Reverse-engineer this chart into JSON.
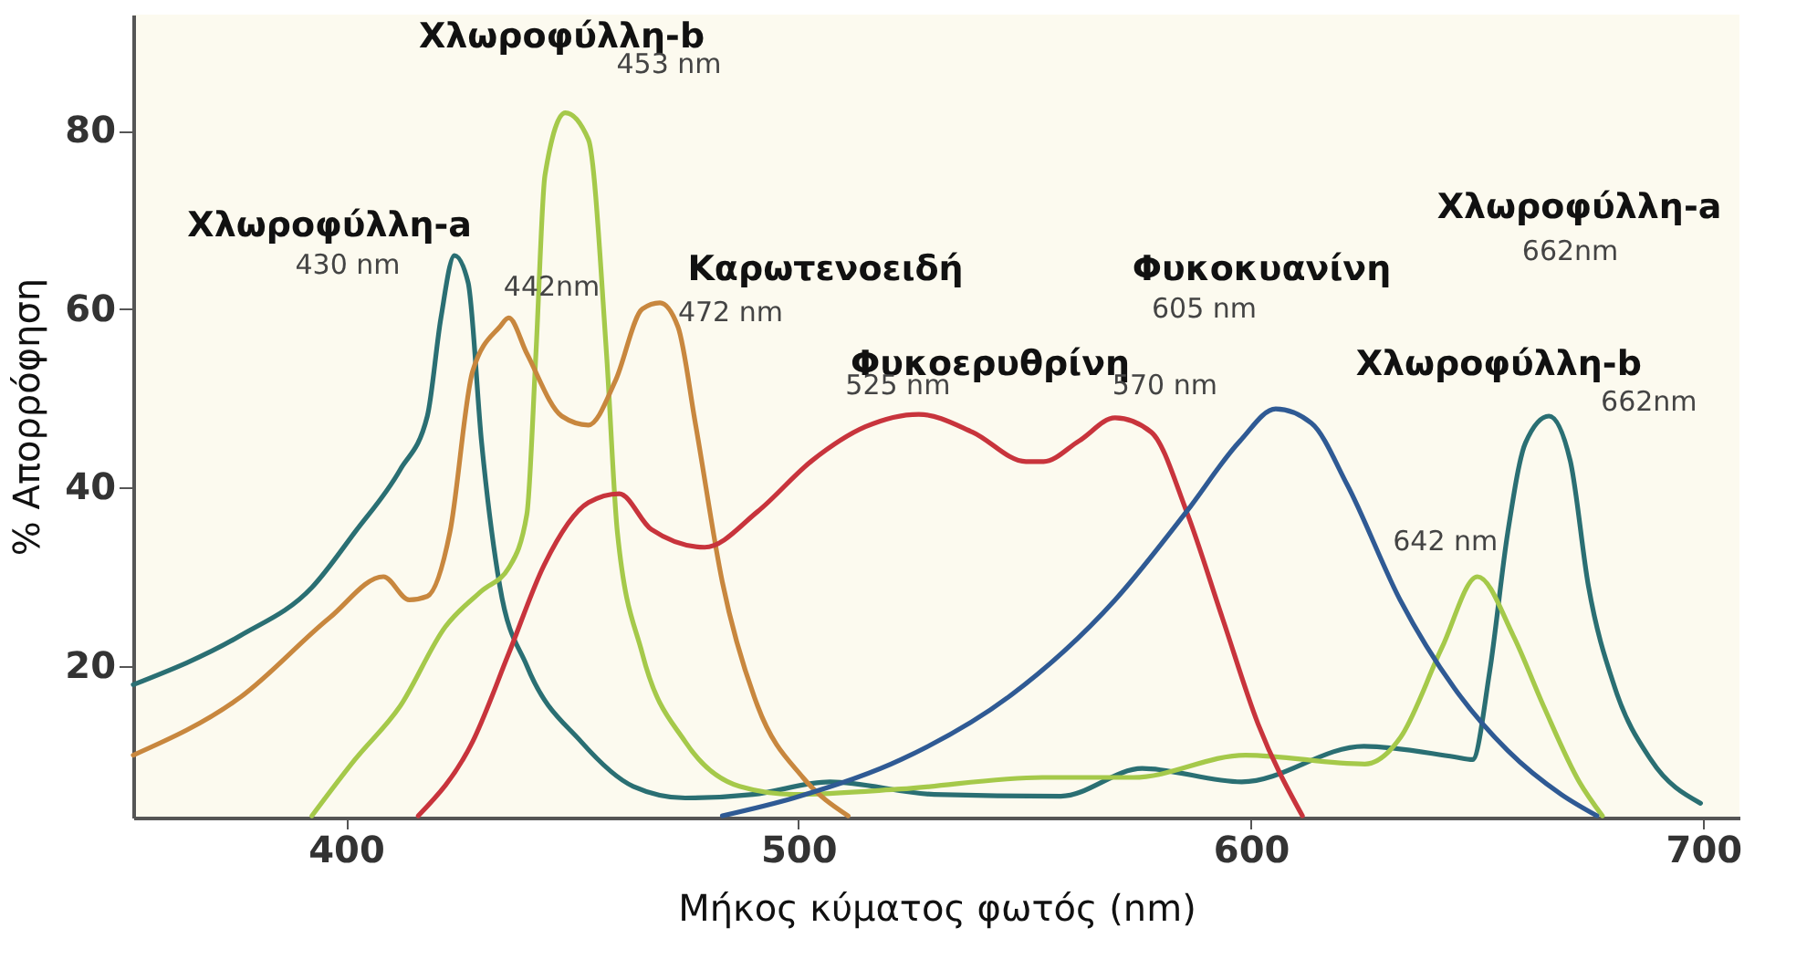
{
  "chart_data": {
    "type": "line",
    "xlabel": "Μήκος κύματος φωτός (nm)",
    "ylabel": "% Απορρόφηση",
    "xlim": [
      353,
      708
    ],
    "ylim": [
      3,
      93
    ],
    "xticks": [
      400,
      500,
      600,
      700
    ],
    "yticks": [
      20,
      40,
      60,
      80
    ],
    "grid": false,
    "legend": false,
    "marker": "none",
    "line_style": "solid",
    "series": [
      {
        "color": "#2a6f73",
        "x": [
          353,
          376.7,
          392.5,
          402,
          412,
          418,
          421,
          424,
          427,
          430,
          434,
          440,
          452,
          463.5,
          475,
          490,
          507,
          530,
          558,
          576,
          598,
          625,
          645,
          649,
          652.8,
          656.8,
          660.7,
          665.9,
          670.6,
          674.6,
          680.5,
          688.4,
          699.4
        ],
        "values": [
          17.9,
          23.4,
          28.8,
          35,
          42,
          48,
          59,
          66,
          63,
          45,
          29,
          20,
          11.5,
          6.5,
          5.2,
          5.6,
          7,
          5.6,
          5.4,
          8.5,
          7,
          11,
          9.8,
          9.5,
          19.4,
          35,
          45,
          48,
          43,
          29,
          17.5,
          9.5,
          4.6
        ]
      },
      {
        "color": "#a5c94a",
        "x": [
          392.5,
          402,
          412,
          422,
          430,
          436,
          440,
          442,
          444,
          448.5,
          453.6,
          457.6,
          460,
          465.5,
          475,
          487,
          499,
          522.7,
          554,
          574,
          598.8,
          625.2,
          633.1,
          642.2,
          650.1,
          658,
          664.7,
          672.6,
          677.7
        ],
        "values": [
          3.2,
          9.5,
          15.5,
          24.4,
          28.4,
          31,
          37,
          55,
          75,
          82,
          79,
          55,
          35,
          21.4,
          11.5,
          6.5,
          5.6,
          6.2,
          7.5,
          7.5,
          10,
          9,
          12,
          22,
          30,
          23.4,
          15.5,
          7,
          3.2
        ]
      },
      {
        "color": "#c8873e",
        "x": [
          353,
          376.7,
          396.4,
          408.3,
          414,
          418,
          423,
          428,
          434,
          436,
          440,
          447.7,
          453.6,
          459.6,
          465.5,
          469.4,
          473.4,
          477.3,
          483.2,
          491,
          501,
          511
        ],
        "values": [
          10,
          16.5,
          25.4,
          30,
          27.4,
          27.8,
          35,
          53,
          58,
          59,
          55,
          48,
          47,
          52,
          60,
          60.7,
          58,
          47,
          29.4,
          15.5,
          7.5,
          3.2
        ]
      },
      {
        "color": "#c8343c",
        "x": [
          416,
          428,
          436,
          443.8,
          453.6,
          460.4,
          467.5,
          479.3,
          491,
          503,
          514.8,
          526.6,
          538.5,
          550.3,
          554.2,
          562,
          570,
          578,
          585.8,
          593.7,
          601.6,
          611.4
        ],
        "values": [
          3.2,
          11.5,
          21.4,
          31.3,
          38.3,
          39.3,
          35.3,
          33.3,
          37.3,
          43,
          46.8,
          48.2,
          46.2,
          42.9,
          42.9,
          45.2,
          47.8,
          46.2,
          37.3,
          25.4,
          13.5,
          3.2
        ]
      },
      {
        "color": "#2f5a94",
        "x": [
          483.2,
          499,
          522.7,
          546.4,
          570,
          585.8,
          597.6,
          605.5,
          613.4,
          621.3,
          633,
          645,
          656.8,
          668.6,
          676.5
        ],
        "values": [
          3.2,
          5.2,
          9.5,
          16.5,
          27.4,
          37.3,
          45.2,
          48.8,
          47.2,
          40.3,
          27.4,
          17.5,
          10.5,
          5.6,
          3.2
        ]
      }
    ],
    "annotations": [
      "Χλωροφύλλη-b",
      "453 nm",
      "Χλωροφύλλη-a",
      "430 nm",
      "442nm",
      "Καρωτενοειδή",
      "472 nm",
      "Φυκοερυθρίνη",
      "525 nm",
      "570 nm",
      "Φυκοκυανίνη",
      "605 nm",
      "Χλωροφύλλη-b",
      "642 nm",
      "Χλωροφύλλη-a",
      "662nm",
      "662nm"
    ]
  }
}
